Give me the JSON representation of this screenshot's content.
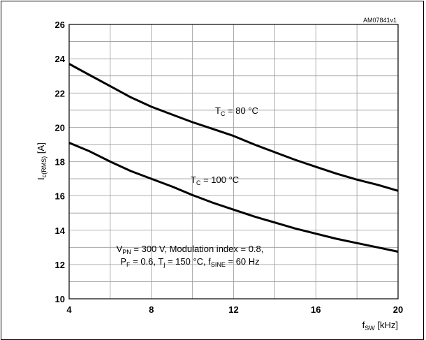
{
  "chart_data": {
    "type": "line",
    "code": "AM07841v1",
    "xlabel": {
      "main": "f",
      "sub": "SW",
      "unit": " [kHz]"
    },
    "ylabel": {
      "main": "I",
      "sub": "c(RMS)",
      "unit": " [A]"
    },
    "xlim": [
      4,
      20
    ],
    "ylim": [
      10,
      26
    ],
    "xticks": [
      4,
      8,
      12,
      16,
      20
    ],
    "yticks": [
      10,
      12,
      14,
      16,
      18,
      20,
      22,
      24,
      26
    ],
    "grid": true,
    "series": [
      {
        "name": "T_C = 80 °C",
        "label": {
          "main": "T",
          "sub": "C",
          "rest": " = 80 °C"
        },
        "x": [
          4,
          5,
          6,
          7,
          8,
          9,
          10,
          11,
          12,
          13,
          14,
          15,
          16,
          17,
          18,
          19,
          20
        ],
        "y": [
          23.7,
          23.05,
          22.4,
          21.75,
          21.2,
          20.75,
          20.3,
          19.9,
          19.5,
          19.0,
          18.55,
          18.1,
          17.7,
          17.3,
          16.95,
          16.65,
          16.3
        ]
      },
      {
        "name": "T_C = 100 °C",
        "label": {
          "main": "T",
          "sub": "C",
          "rest": " = 100 °C"
        },
        "x": [
          4,
          5,
          6,
          7,
          8,
          9,
          10,
          11,
          12,
          13,
          14,
          15,
          16,
          17,
          18,
          19,
          20
        ],
        "y": [
          19.1,
          18.6,
          18.0,
          17.45,
          17.0,
          16.55,
          16.05,
          15.6,
          15.2,
          14.8,
          14.45,
          14.1,
          13.8,
          13.5,
          13.25,
          13.0,
          12.75
        ]
      }
    ],
    "conditions": {
      "line1": [
        {
          "t": "V"
        },
        {
          "t": "PN",
          "sub": true
        },
        {
          "t": " = 300 V, Modulation index = 0.8,"
        }
      ],
      "line2": [
        {
          "t": "P"
        },
        {
          "t": "F",
          "sub": true
        },
        {
          "t": " = 0.6, T"
        },
        {
          "t": "j",
          "sub": true
        },
        {
          "t": " = 150 °C, f"
        },
        {
          "t": "SINE",
          "sub": true
        },
        {
          "t": " = 60 Hz"
        }
      ]
    }
  }
}
